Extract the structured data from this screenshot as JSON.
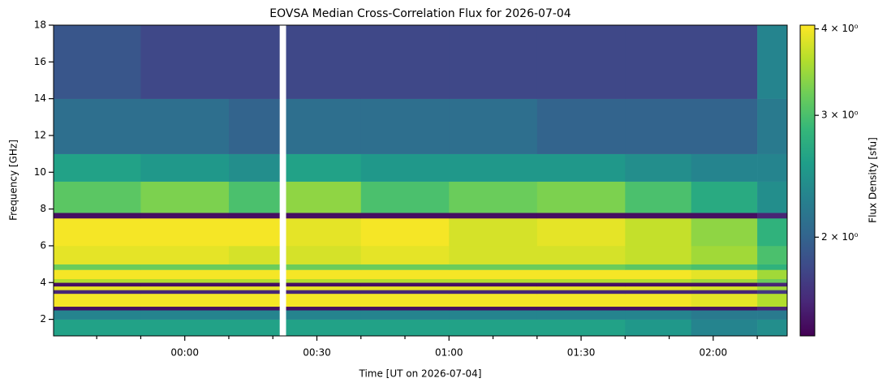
{
  "chart_data": {
    "type": "heatmap",
    "title": "EOVSA Median Cross-Correlation Flux for 2026-07-04",
    "xlabel": "Time [UT on 2026-07-04]",
    "ylabel": "Frequency [GHz]",
    "colorbar_label": "Flux Density [sfu]",
    "colormap": "viridis",
    "clim": [
      1.44,
      4.05
    ],
    "clog": true,
    "cticks": [
      {
        "value": 2,
        "label": "2 × 10⁰"
      },
      {
        "value": 3,
        "label": "3 × 10⁰"
      },
      {
        "value": 4,
        "label": "4 × 10⁰"
      }
    ],
    "xlim": [
      -29.8,
      136.8
    ],
    "xticks": [
      {
        "value": 0,
        "label": "00:00"
      },
      {
        "value": 30,
        "label": "00:30"
      },
      {
        "value": 60,
        "label": "01:00"
      },
      {
        "value": 90,
        "label": "01:30"
      },
      {
        "value": 120,
        "label": "02:00"
      }
    ],
    "xminorticks": [
      -20,
      -10,
      10,
      20,
      40,
      50,
      70,
      80,
      100,
      110,
      130
    ],
    "ylim": [
      1.1,
      18
    ],
    "yticks": [
      2,
      4,
      6,
      8,
      10,
      12,
      14,
      16,
      18
    ],
    "x_bins": [
      -29.8,
      -10,
      10,
      21.5,
      23,
      40,
      60,
      80,
      100,
      115,
      130,
      136.8
    ],
    "y_bins": [
      1.1,
      2.0,
      2.5,
      2.7,
      3.4,
      3.6,
      3.8,
      4.0,
      4.2,
      4.7,
      5.0,
      6.0,
      7.5,
      7.8,
      9.5,
      11,
      14,
      18
    ],
    "values": [
      [
        2.6,
        2.6,
        2.6,
        null,
        2.6,
        2.6,
        2.6,
        2.6,
        2.5,
        2.3,
        2.4
      ],
      [
        2.3,
        2.3,
        2.3,
        null,
        2.3,
        2.3,
        2.3,
        2.3,
        2.3,
        2.2,
        2.2
      ],
      [
        1.5,
        1.5,
        1.5,
        null,
        1.5,
        1.5,
        1.5,
        1.5,
        1.5,
        1.5,
        1.6
      ],
      [
        4.0,
        4.0,
        4.0,
        null,
        4.0,
        4.0,
        4.0,
        4.0,
        4.0,
        3.9,
        3.6
      ],
      [
        1.6,
        1.6,
        1.6,
        null,
        1.6,
        1.6,
        1.6,
        1.6,
        1.6,
        1.6,
        1.7
      ],
      [
        3.9,
        3.9,
        3.9,
        null,
        3.9,
        3.9,
        3.9,
        3.9,
        3.9,
        3.8,
        3.5
      ],
      [
        1.5,
        1.5,
        1.5,
        null,
        1.5,
        1.5,
        1.5,
        1.5,
        1.5,
        1.5,
        1.6
      ],
      [
        3.6,
        3.6,
        3.6,
        null,
        3.6,
        3.6,
        3.6,
        3.6,
        3.6,
        3.5,
        3.2
      ],
      [
        4.0,
        4.0,
        4.0,
        null,
        4.0,
        4.0,
        4.0,
        4.0,
        4.0,
        3.9,
        3.5
      ],
      [
        3.2,
        3.2,
        3.2,
        null,
        3.2,
        3.2,
        3.2,
        3.2,
        3.1,
        3.0,
        2.8
      ],
      [
        3.9,
        3.9,
        3.8,
        null,
        3.8,
        3.9,
        3.8,
        3.8,
        3.7,
        3.5,
        3.0
      ],
      [
        4.0,
        4.0,
        4.0,
        null,
        3.9,
        4.0,
        3.8,
        3.9,
        3.7,
        3.4,
        2.8
      ],
      [
        1.5,
        1.5,
        1.5,
        null,
        1.5,
        1.5,
        1.5,
        1.5,
        1.5,
        1.5,
        1.6
      ],
      [
        3.1,
        3.3,
        3.0,
        null,
        3.4,
        3.0,
        3.2,
        3.3,
        3.0,
        2.7,
        2.4
      ],
      [
        2.6,
        2.5,
        2.4,
        null,
        2.6,
        2.5,
        2.5,
        2.5,
        2.4,
        2.3,
        2.3
      ],
      [
        2.1,
        2.1,
        2.0,
        null,
        2.1,
        2.1,
        2.1,
        2.0,
        2.0,
        2.0,
        2.2
      ],
      [
        1.9,
        1.8,
        1.8,
        null,
        1.8,
        1.8,
        1.8,
        1.8,
        1.8,
        1.8,
        2.3
      ]
    ]
  }
}
